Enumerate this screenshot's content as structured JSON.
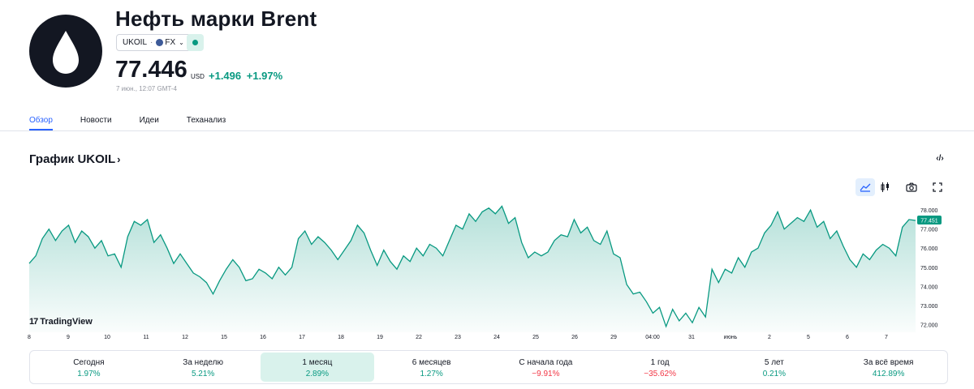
{
  "header": {
    "title": "Нефть марки Brent",
    "symbol": "UKOIL",
    "exchange": "FX",
    "price": "77.446",
    "currency": "USD",
    "change_abs": "+1.496",
    "change_pct": "+1.97%",
    "timestamp": "7 июн., 12:07 GMT-4",
    "market_status": "open",
    "logo_icon": "oil-drop-icon"
  },
  "tabs": [
    {
      "label": "Обзор",
      "active": true
    },
    {
      "label": "Новости",
      "active": false
    },
    {
      "label": "Идеи",
      "active": false
    },
    {
      "label": "Теханализ",
      "active": false
    }
  ],
  "chart_section": {
    "title": "График UKOIL",
    "title_arrow": "›",
    "embed_icon_label": "‹/›",
    "tools": [
      "area-chart-icon",
      "candles-icon",
      "camera-icon",
      "fullscreen-icon"
    ],
    "watermark": "TradingView",
    "watermark_mark": "17"
  },
  "chart_data": {
    "type": "area",
    "color": "#089981",
    "x_tick_labels": [
      "8",
      "9",
      "10",
      "11",
      "12",
      "15",
      "16",
      "17",
      "18",
      "19",
      "22",
      "23",
      "24",
      "25",
      "26",
      "29",
      "04:00",
      "31",
      "июнь",
      "2",
      "5",
      "6",
      "7"
    ],
    "y_tick_labels": [
      "78.000",
      "77.000",
      "76.000",
      "75.000",
      "74.000",
      "73.000",
      "72.000"
    ],
    "ylim": [
      71.6,
      78.3
    ],
    "last_value_label": "77.451",
    "values": [
      75.2,
      75.6,
      76.5,
      77.0,
      76.4,
      76.9,
      77.2,
      76.3,
      76.9,
      76.6,
      76.0,
      76.4,
      75.6,
      75.7,
      75.0,
      76.6,
      77.4,
      77.2,
      77.5,
      76.3,
      76.7,
      76.0,
      75.2,
      75.7,
      75.2,
      74.7,
      74.5,
      74.2,
      73.6,
      74.3,
      74.9,
      75.4,
      75.0,
      74.3,
      74.4,
      74.9,
      74.7,
      74.4,
      75.0,
      74.6,
      75.0,
      76.5,
      76.9,
      76.2,
      76.6,
      76.3,
      75.9,
      75.4,
      75.9,
      76.4,
      77.2,
      76.8,
      75.9,
      75.1,
      75.9,
      75.3,
      74.9,
      75.6,
      75.3,
      76.0,
      75.6,
      76.2,
      76.0,
      75.6,
      76.4,
      77.2,
      77.0,
      77.8,
      77.4,
      77.9,
      78.1,
      77.8,
      78.2,
      77.3,
      77.6,
      76.3,
      75.5,
      75.8,
      75.6,
      75.8,
      76.4,
      76.7,
      76.6,
      77.5,
      76.8,
      77.1,
      76.4,
      76.2,
      76.9,
      75.7,
      75.5,
      74.1,
      73.6,
      73.7,
      73.2,
      72.6,
      72.9,
      71.9,
      72.8,
      72.2,
      72.6,
      72.1,
      72.9,
      72.4,
      74.9,
      74.2,
      74.9,
      74.7,
      75.5,
      75.0,
      75.8,
      76.0,
      76.8,
      77.2,
      77.9,
      77.0,
      77.3,
      77.6,
      77.4,
      78.0,
      77.1,
      77.4,
      76.5,
      76.9,
      76.1,
      75.4,
      75.0,
      75.7,
      75.4,
      75.9,
      76.2,
      76.0,
      75.6,
      77.1,
      77.5,
      77.451
    ]
  },
  "periods": [
    {
      "label": "Сегодня",
      "value": "1.97%",
      "sign": "pos",
      "active": false
    },
    {
      "label": "За неделю",
      "value": "5.21%",
      "sign": "pos",
      "active": false
    },
    {
      "label": "1 месяц",
      "value": "2.89%",
      "sign": "pos",
      "active": true
    },
    {
      "label": "6 месяцев",
      "value": "1.27%",
      "sign": "pos",
      "active": false
    },
    {
      "label": "С начала года",
      "value": "−9.91%",
      "sign": "neg",
      "active": false
    },
    {
      "label": "1 год",
      "value": "−35.62%",
      "sign": "neg",
      "active": false
    },
    {
      "label": "5 лет",
      "value": "0.21%",
      "sign": "pos",
      "active": false
    },
    {
      "label": "За всё время",
      "value": "412.89%",
      "sign": "pos",
      "active": false
    }
  ]
}
